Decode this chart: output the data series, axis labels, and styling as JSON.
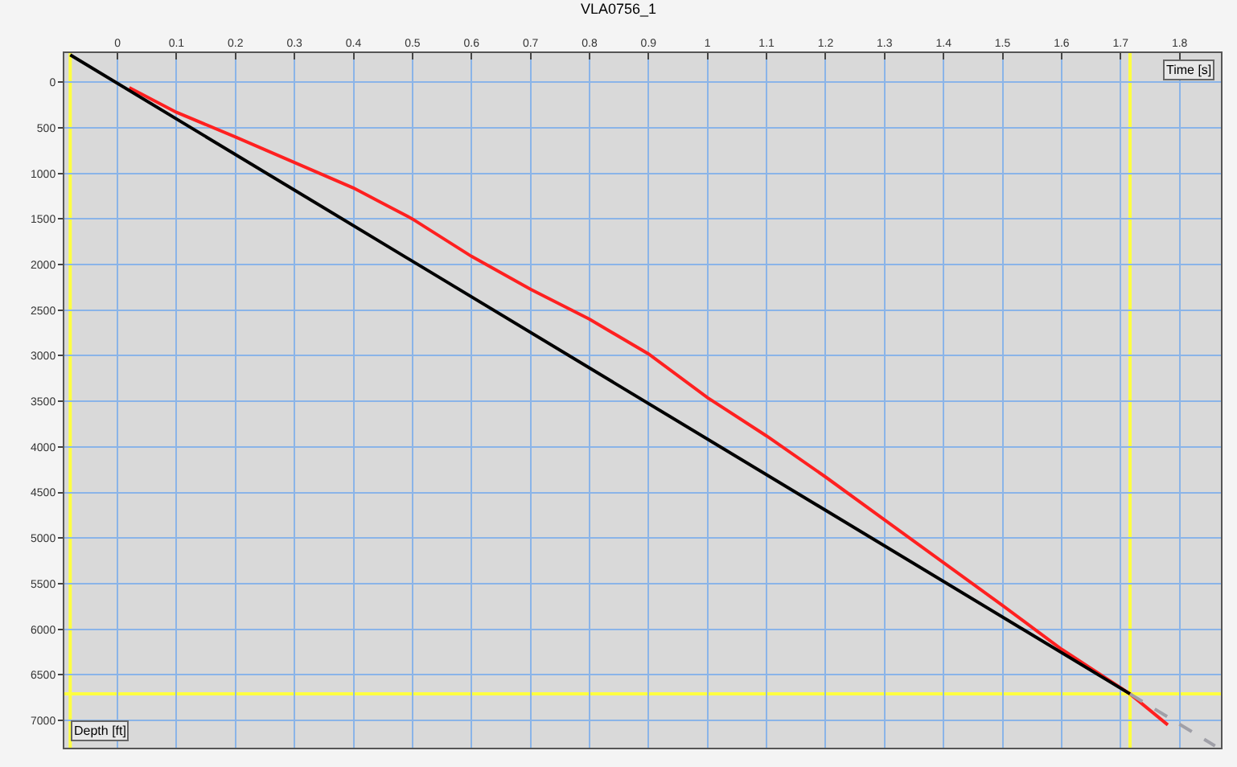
{
  "chart_data": {
    "type": "line",
    "title": "VLA0756_1",
    "xlabel": "Time [s]",
    "ylabel": "Depth [ft]",
    "xlim": [
      -0.09,
      1.87
    ],
    "xticks": [
      0,
      0.1,
      0.2,
      0.3,
      0.4,
      0.5,
      0.6,
      0.7,
      0.8,
      0.9,
      1,
      1.1,
      1.2,
      1.3,
      1.4,
      1.5,
      1.6,
      1.7,
      1.8
    ],
    "ylim": [
      7300,
      -320
    ],
    "yticks": [
      0,
      500,
      1000,
      1500,
      2000,
      2500,
      3000,
      3500,
      4000,
      4500,
      5000,
      5500,
      6000,
      6500,
      7000
    ],
    "grid": true,
    "series": [
      {
        "color": "#ff2020",
        "x": [
          0.02,
          0.1,
          0.2,
          0.3,
          0.4,
          0.5,
          0.6,
          0.7,
          0.8,
          0.9,
          1.0,
          1.1,
          1.2,
          1.3,
          1.4,
          1.5,
          1.6,
          1.716,
          1.78
        ],
        "values": [
          60,
          330,
          600,
          880,
          1160,
          1500,
          1910,
          2270,
          2600,
          2980,
          3460,
          3880,
          4330,
          4800,
          5270,
          5740,
          6220,
          6710,
          7050
        ]
      },
      {
        "color": "#000000",
        "x": [
          -0.08,
          1.716
        ],
        "values": [
          -300,
          6710
        ]
      },
      {
        "color": "#a0a0a8",
        "line_style": "dashed",
        "x": [
          1.716,
          1.86
        ],
        "values": [
          6710,
          7280
        ]
      }
    ],
    "ref_lines": [
      {
        "axis": "x",
        "value": -0.08,
        "color": "#ffff40"
      },
      {
        "axis": "x",
        "value": 1.716,
        "color": "#ffff40"
      },
      {
        "axis": "y",
        "value": 6710,
        "color": "#ffff40"
      }
    ]
  }
}
